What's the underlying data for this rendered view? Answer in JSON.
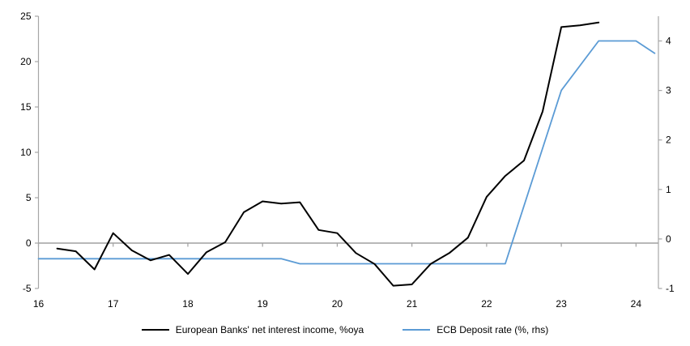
{
  "chart_data": {
    "type": "line",
    "grid": "zero-line-only",
    "legend_position": "bottom-center",
    "x_axis": {
      "min": 16,
      "max": 24.3,
      "ticks": [
        16,
        17,
        18,
        19,
        20,
        21,
        22,
        23,
        24
      ],
      "tick_labels": [
        "16",
        "17",
        "18",
        "19",
        "20",
        "21",
        "22",
        "23",
        "24"
      ]
    },
    "left_axis": {
      "min": -5,
      "max": 25,
      "ticks": [
        -5,
        0,
        5,
        10,
        15,
        20,
        25
      ]
    },
    "right_axis": {
      "min": -1,
      "max": 4.5,
      "ticks": [
        -1,
        0,
        1,
        2,
        3,
        4
      ]
    },
    "series": [
      {
        "name": "European Banks' net interest income, %oya",
        "axis": "left",
        "color": "#000000",
        "stroke_width": 2,
        "x": [
          16.25,
          16.5,
          16.75,
          17.0,
          17.25,
          17.5,
          17.75,
          18.0,
          18.25,
          18.5,
          18.75,
          19.0,
          19.25,
          19.5,
          19.75,
          20.0,
          20.25,
          20.5,
          20.75,
          21.0,
          21.25,
          21.5,
          21.75,
          22.0,
          22.25,
          22.5,
          22.75,
          23.0,
          23.25,
          23.5
        ],
        "values": [
          -0.6,
          -0.9,
          -2.9,
          1.1,
          -0.8,
          -1.9,
          -1.3,
          -3.4,
          -1.0,
          0.1,
          3.4,
          4.6,
          4.35,
          4.5,
          1.45,
          1.1,
          -1.1,
          -2.3,
          -4.7,
          -4.55,
          -2.3,
          -1.1,
          0.6,
          5.1,
          7.4,
          9.1,
          14.5,
          23.8,
          24.0,
          24.3
        ]
      },
      {
        "name": "ECB Deposit rate (%, rhs)",
        "axis": "right",
        "color": "#5b9bd5",
        "stroke_width": 1.8,
        "x": [
          16.0,
          19.25,
          19.5,
          22.25,
          23.0,
          23.5,
          24.0,
          24.25
        ],
        "values": [
          -0.4,
          -0.4,
          -0.5,
          -0.5,
          3.0,
          4.0,
          4.0,
          3.75
        ]
      }
    ]
  },
  "colors": {
    "axis_line": "#a6a6a6",
    "zero_line": "#a0a0a0",
    "background": "#ffffff",
    "text": "#000000"
  }
}
